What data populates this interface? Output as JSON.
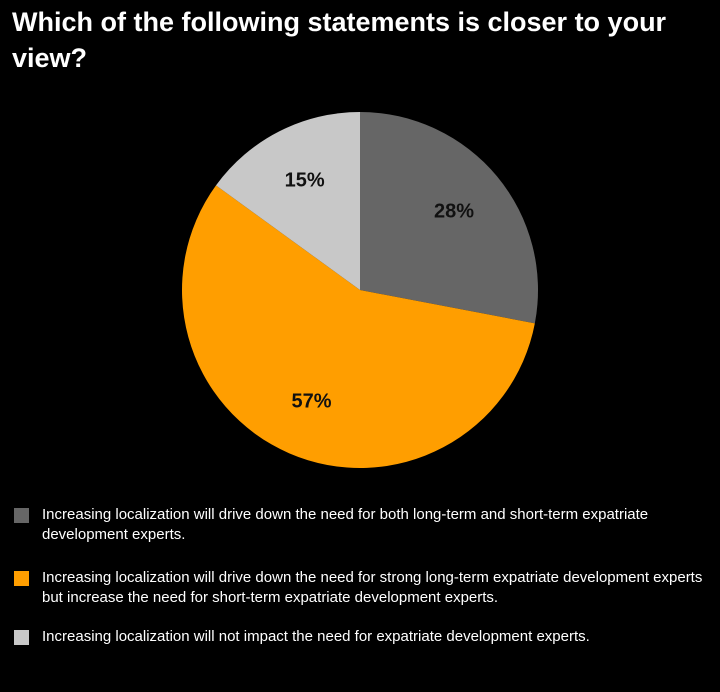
{
  "title": "Which of the following statements is closer to your view?",
  "chart_data": {
    "type": "pie",
    "title": "Which of the following statements is closer to your view?",
    "slices": [
      {
        "label": "Increasing localization will drive down the need for both long-term and short-term expatriate development experts.",
        "value": 28,
        "display": "28%",
        "color": "#666666",
        "label_color": "#111111"
      },
      {
        "label": "Increasing localization will drive down the need for strong long-term expatriate development experts but increase the need for short-term expatriate development experts.",
        "value": 57,
        "display": "57%",
        "color": "#FF9E00",
        "label_color": "#111111"
      },
      {
        "label": "Increasing localization will not impact the need for expatriate development experts.",
        "value": 15,
        "display": "15%",
        "color": "#C8C8C8",
        "label_color": "#111111"
      }
    ],
    "start_angle_deg": 0,
    "direction": "clockwise",
    "legend_position": "bottom"
  }
}
